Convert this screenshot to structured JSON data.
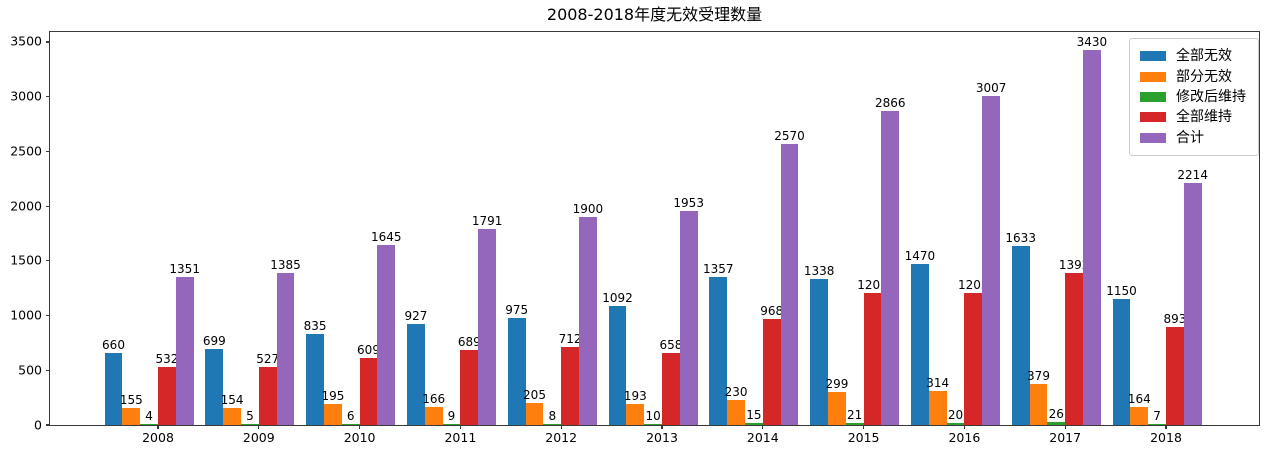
{
  "chart_data": {
    "type": "bar",
    "title": "2008-2018年度无效受理数量",
    "xlabel": "",
    "ylabel": "",
    "categories": [
      "2008",
      "2009",
      "2010",
      "2011",
      "2012",
      "2013",
      "2014",
      "2015",
      "2016",
      "2017",
      "2018"
    ],
    "series": [
      {
        "name": "全部无效",
        "color": "#1f77b4",
        "values": [
          660,
          699,
          835,
          927,
          975,
          1092,
          1357,
          1338,
          1470,
          1633,
          1150
        ]
      },
      {
        "name": "部分无效",
        "color": "#ff7f0e",
        "values": [
          155,
          154,
          195,
          166,
          205,
          193,
          230,
          299,
          314,
          379,
          164
        ]
      },
      {
        "name": "修改后维持",
        "color": "#2ca02c",
        "values": [
          4,
          5,
          6,
          9,
          8,
          10,
          15,
          21,
          20,
          26,
          7
        ]
      },
      {
        "name": "全部维持",
        "color": "#d62728",
        "values": [
          532,
          527,
          609,
          689,
          712,
          658,
          968,
          1208,
          1203,
          1392,
          893
        ]
      },
      {
        "name": "合计",
        "color": "#9467bd",
        "values": [
          1351,
          1385,
          1645,
          1791,
          1900,
          1953,
          2570,
          2866,
          3007,
          3430,
          2214
        ]
      }
    ],
    "ylim": [
      0,
      3500
    ],
    "yticks": [
      0,
      500,
      1000,
      1500,
      2000,
      2500,
      3000,
      3500
    ],
    "bar_value_labels": true,
    "grid": false,
    "legend_position": "upper right"
  }
}
